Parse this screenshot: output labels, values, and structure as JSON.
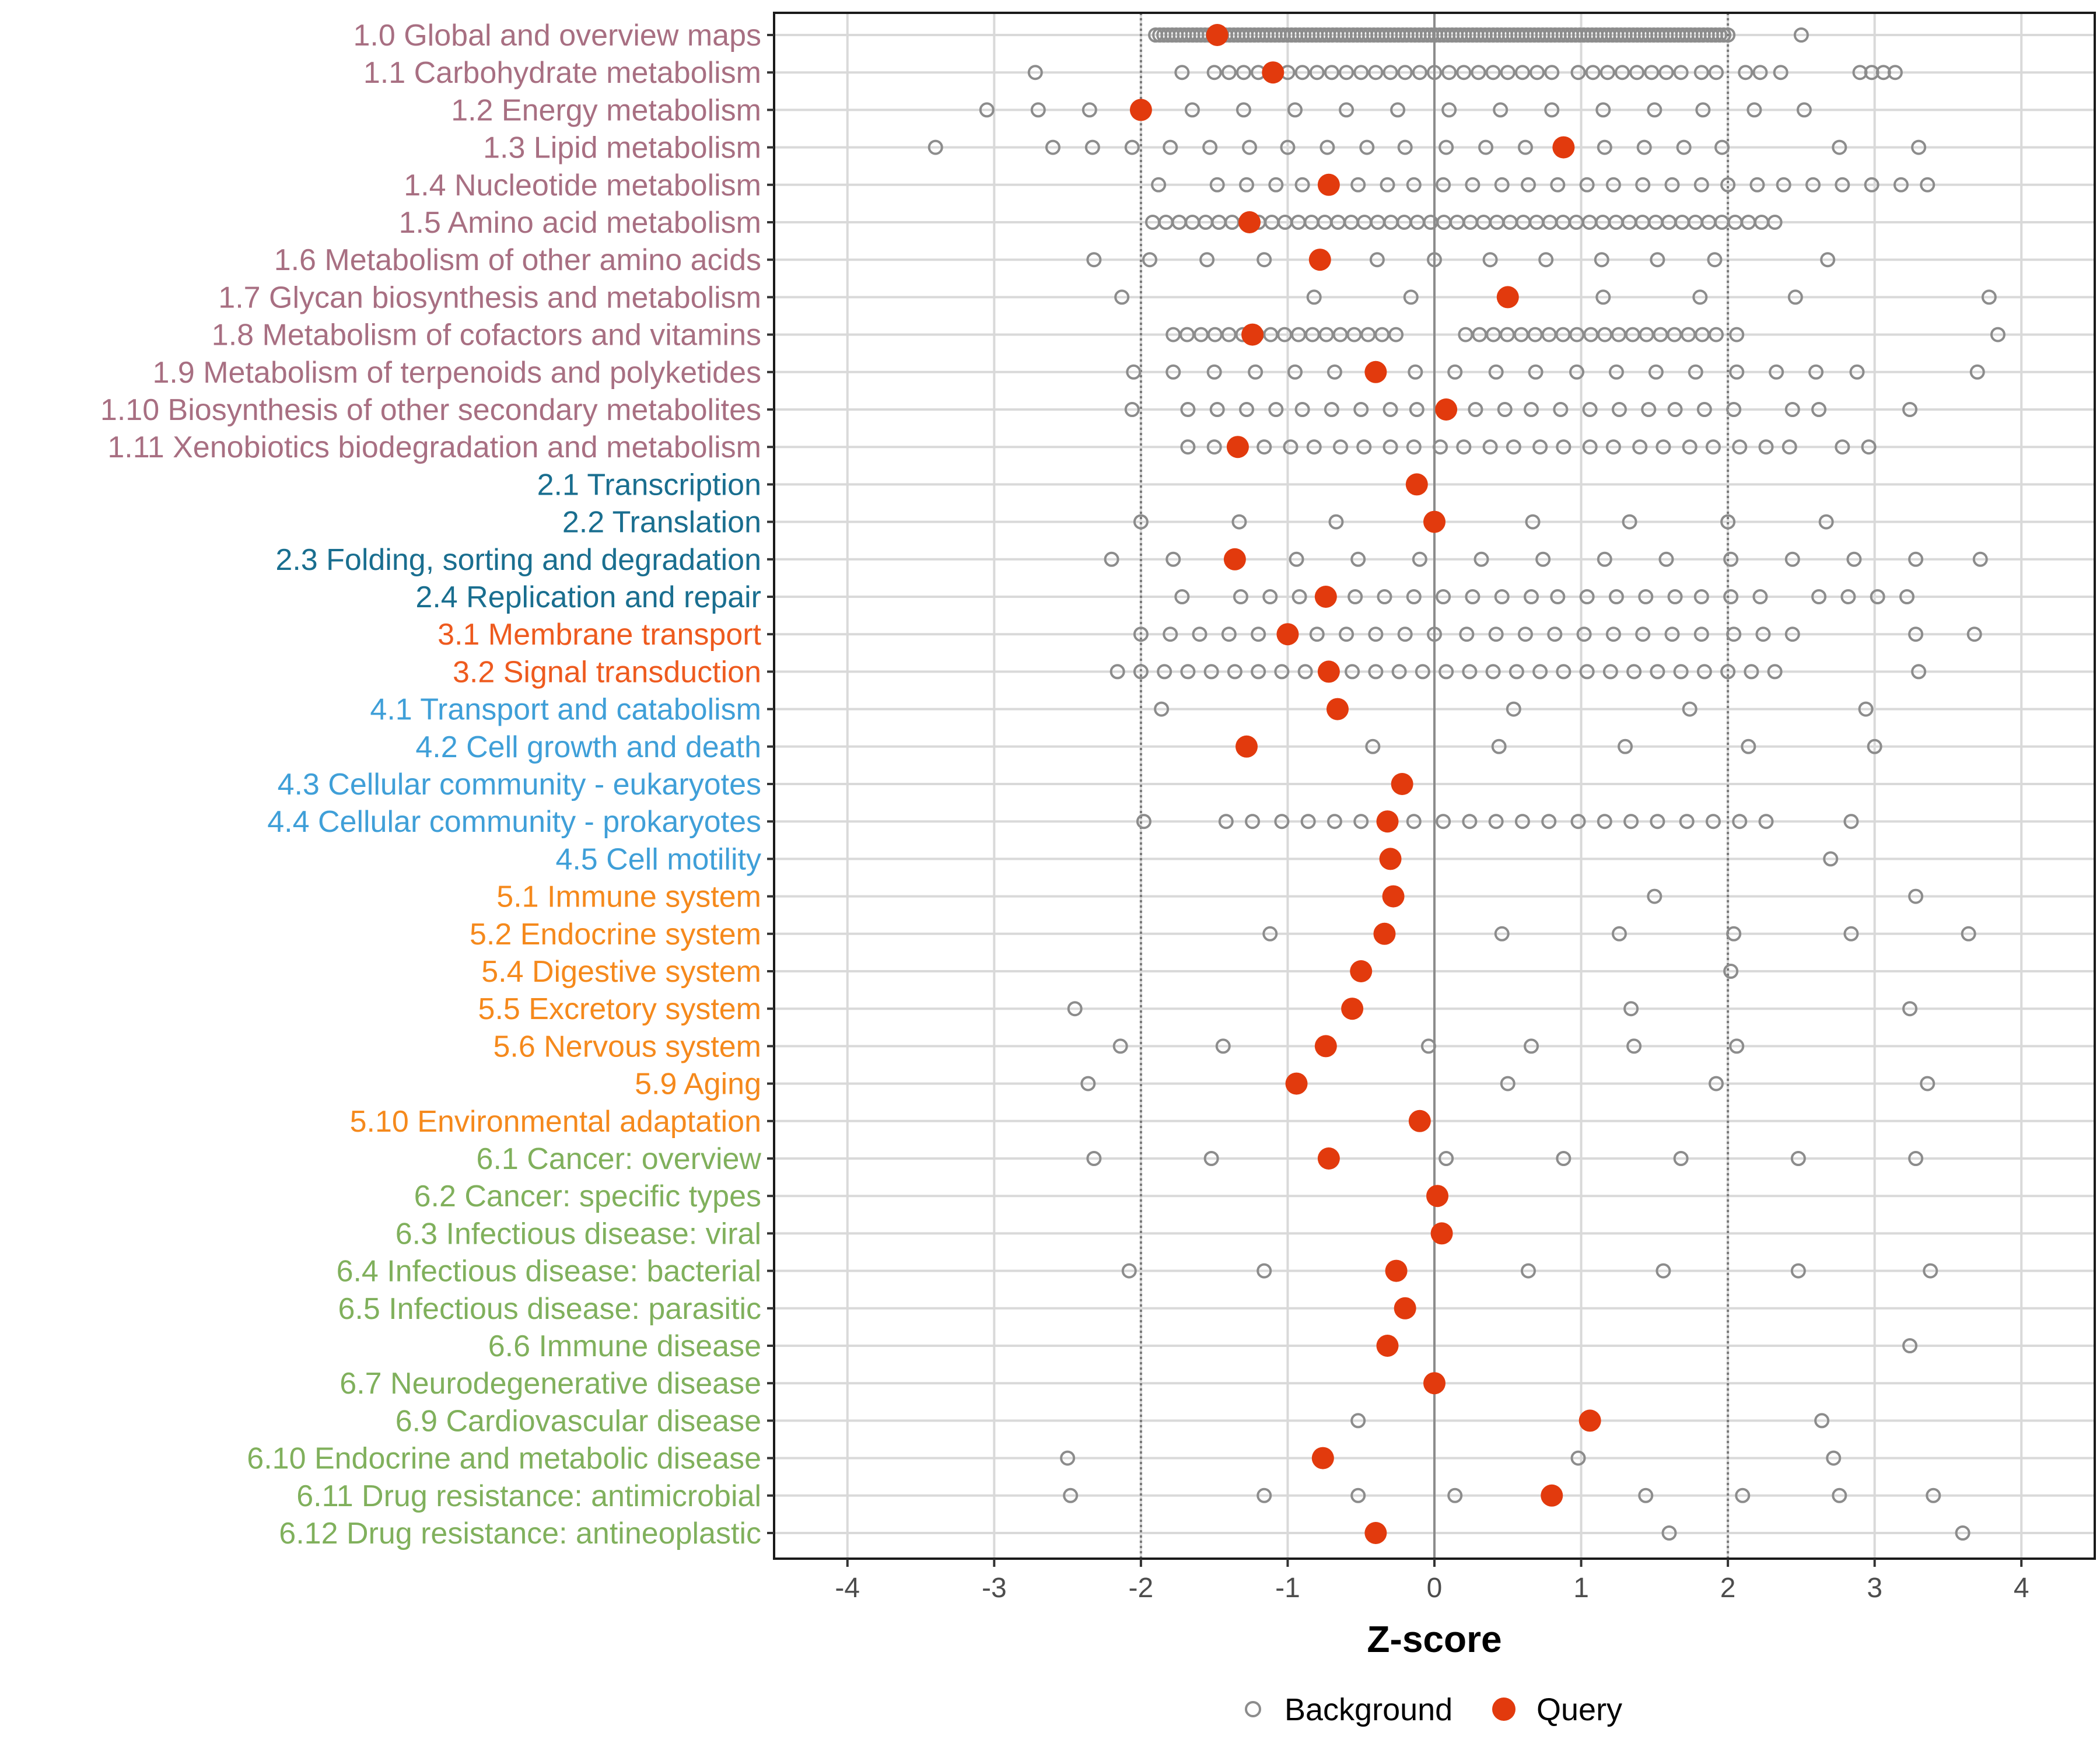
{
  "chart_data": {
    "type": "scatter",
    "xlabel": "Z-score",
    "ylabel": "",
    "xlim": [
      -4.5,
      4.5
    ],
    "xticks": [
      -4,
      -3,
      -2,
      -1,
      0,
      1,
      2,
      3,
      4
    ],
    "xtick_labels": [
      "-4",
      "-3",
      "-2",
      "-1",
      "0",
      "1",
      "2",
      "3",
      "4"
    ],
    "reference_lines": [
      -2,
      0,
      2
    ],
    "grid": true,
    "legend": {
      "position": "bottom",
      "entries": [
        {
          "name": "Background",
          "marker": "open-circle",
          "color": "#8c8c8c"
        },
        {
          "name": "Query",
          "marker": "filled-circle",
          "color": "#e23a0d"
        }
      ]
    },
    "group_colors": {
      "1": "#a86f82",
      "2": "#196e8f",
      "3": "#ee5a1e",
      "4": "#3f9fd8",
      "5": "#f5891c",
      "6": "#80b05c"
    },
    "categories": [
      {
        "label": "1.0 Global and overview maps",
        "group": "1",
        "query": -1.48,
        "background_range": [
          -1.9,
          2.0
        ],
        "background_count": 140,
        "background_extra": [
          2.5
        ]
      },
      {
        "label": "1.1 Carbohydrate metabolism",
        "group": "1",
        "query": -1.1,
        "background": [
          -2.72,
          -1.72,
          -1.5,
          -1.4,
          -1.3,
          -1.2,
          -1.0,
          -0.9,
          -0.8,
          -0.7,
          -0.6,
          -0.5,
          -0.4,
          -0.3,
          -0.2,
          -0.1,
          0.0,
          0.1,
          0.2,
          0.3,
          0.4,
          0.5,
          0.6,
          0.7,
          0.8,
          0.98,
          1.08,
          1.18,
          1.28,
          1.38,
          1.48,
          1.58,
          1.68,
          1.82,
          1.92,
          2.12,
          2.22,
          2.36,
          2.9,
          2.98,
          3.06,
          3.14
        ]
      },
      {
        "label": "1.2 Energy metabolism",
        "group": "1",
        "query": -2.0,
        "background": [
          -3.05,
          -2.7,
          -2.35,
          -2.0,
          -1.65,
          -1.3,
          -0.95,
          -0.6,
          -0.25,
          0.1,
          0.45,
          0.8,
          1.15,
          1.5,
          1.83,
          2.18,
          2.52
        ]
      },
      {
        "label": "1.3 Lipid metabolism",
        "group": "1",
        "query": 0.88,
        "background": [
          -3.4,
          -2.6,
          -2.33,
          -2.06,
          -1.8,
          -1.53,
          -1.26,
          -1.0,
          -0.73,
          -0.46,
          -0.2,
          0.08,
          0.35,
          0.62,
          0.9,
          1.16,
          1.43,
          1.7,
          1.96,
          2.76,
          3.3
        ]
      },
      {
        "label": "1.4 Nucleotide metabolism",
        "group": "1",
        "query": -0.72,
        "background": [
          -1.88,
          -1.48,
          -1.28,
          -1.08,
          -0.9,
          -0.7,
          -0.52,
          -0.32,
          -0.14,
          0.06,
          0.26,
          0.46,
          0.64,
          0.84,
          1.04,
          1.22,
          1.42,
          1.62,
          1.82,
          2.0,
          2.2,
          2.38,
          2.58,
          2.78,
          2.98,
          3.18,
          3.36
        ]
      },
      {
        "label": "1.5 Amino acid metabolism",
        "group": "1",
        "query": -1.26,
        "background_range": [
          -1.92,
          2.32
        ],
        "background_count": 48
      },
      {
        "label": "1.6 Metabolism of other amino acids",
        "group": "1",
        "query": -0.78,
        "background": [
          -2.32,
          -1.94,
          -1.55,
          -1.16,
          -0.78,
          -0.39,
          0.0,
          0.38,
          0.76,
          1.14,
          1.52,
          1.91,
          2.68
        ]
      },
      {
        "label": "1.7 Glycan biosynthesis and metabolism",
        "group": "1",
        "query": 0.5,
        "background": [
          -2.13,
          -0.82,
          -0.16,
          0.5,
          1.15,
          1.81,
          2.46,
          3.78
        ]
      },
      {
        "label": "1.8 Metabolism of cofactors and vitamins",
        "group": "1",
        "query": -1.24,
        "background_range": [
          -1.78,
          1.92
        ],
        "background_count": 40,
        "background_gap": [
          -0.22,
          0.2
        ],
        "background_extra": [
          2.06,
          3.84
        ]
      },
      {
        "label": "1.9 Metabolism of terpenoids and polyketides",
        "group": "1",
        "query": -0.4,
        "background": [
          -2.05,
          -1.78,
          -1.5,
          -1.22,
          -0.95,
          -0.68,
          -0.4,
          -0.13,
          0.14,
          0.42,
          0.69,
          0.97,
          1.24,
          1.51,
          1.78,
          2.06,
          2.33,
          2.6,
          2.88,
          3.7
        ]
      },
      {
        "label": "1.10 Biosynthesis of other secondary metabolites",
        "group": "1",
        "query": 0.08,
        "background": [
          -2.06,
          -1.68,
          -1.48,
          -1.28,
          -1.08,
          -0.9,
          -0.7,
          -0.5,
          -0.3,
          -0.12,
          0.08,
          0.28,
          0.48,
          0.66,
          0.86,
          1.06,
          1.26,
          1.46,
          1.64,
          1.84,
          2.04,
          2.44,
          2.62,
          3.24
        ]
      },
      {
        "label": "1.11 Xenobiotics biodegradation and metabolism",
        "group": "1",
        "query": -1.34,
        "background": [
          -1.68,
          -1.5,
          -1.34,
          -1.16,
          -0.98,
          -0.82,
          -0.64,
          -0.48,
          -0.3,
          -0.14,
          0.04,
          0.2,
          0.38,
          0.54,
          0.72,
          0.88,
          1.06,
          1.22,
          1.4,
          1.56,
          1.74,
          1.9,
          2.08,
          2.26,
          2.42,
          2.78,
          2.96
        ]
      },
      {
        "label": "2.1 Transcription",
        "group": "2",
        "query": -0.12,
        "background": []
      },
      {
        "label": "2.2 Translation",
        "group": "2",
        "query": 0.0,
        "background": [
          -2.0,
          -1.33,
          -0.67,
          0.0,
          0.67,
          1.33,
          2.0,
          2.67
        ]
      },
      {
        "label": "2.3 Folding, sorting and degradation",
        "group": "2",
        "query": -1.36,
        "background": [
          -2.2,
          -1.78,
          -1.36,
          -0.94,
          -0.52,
          -0.1,
          0.32,
          0.74,
          1.16,
          1.58,
          2.02,
          2.44,
          2.86,
          3.28,
          3.72
        ]
      },
      {
        "label": "2.4 Replication and repair",
        "group": "2",
        "query": -0.74,
        "background": [
          -1.72,
          -1.32,
          -1.12,
          -0.92,
          -0.74,
          -0.54,
          -0.34,
          -0.14,
          0.06,
          0.26,
          0.46,
          0.66,
          0.84,
          1.04,
          1.24,
          1.44,
          1.64,
          1.82,
          2.02,
          2.22,
          2.62,
          2.82,
          3.02,
          3.22
        ]
      },
      {
        "label": "3.1 Membrane transport",
        "group": "3",
        "query": -1.0,
        "background": [
          -2.0,
          -1.8,
          -1.6,
          -1.4,
          -1.2,
          -1.0,
          -0.8,
          -0.6,
          -0.4,
          -0.2,
          0.0,
          0.22,
          0.42,
          0.62,
          0.82,
          1.02,
          1.22,
          1.42,
          1.62,
          1.82,
          2.04,
          2.24,
          2.44,
          3.28,
          3.68
        ]
      },
      {
        "label": "3.2 Signal transduction",
        "group": "3",
        "query": -0.72,
        "background": [
          -2.16,
          -2.0,
          -1.84,
          -1.68,
          -1.52,
          -1.36,
          -1.2,
          -1.04,
          -0.88,
          -0.72,
          -0.56,
          -0.4,
          -0.24,
          -0.08,
          0.08,
          0.24,
          0.4,
          0.56,
          0.72,
          0.88,
          1.04,
          1.2,
          1.36,
          1.52,
          1.68,
          1.84,
          2.0,
          2.16,
          2.32,
          3.3
        ]
      },
      {
        "label": "4.1 Transport and catabolism",
        "group": "4",
        "query": -0.66,
        "background": [
          -1.86,
          -0.66,
          0.54,
          1.74,
          2.94
        ]
      },
      {
        "label": "4.2 Cell growth and death",
        "group": "4",
        "query": -1.28,
        "background": [
          -1.28,
          -0.42,
          0.44,
          1.3,
          2.14,
          3.0
        ]
      },
      {
        "label": "4.3 Cellular community - eukaryotes",
        "group": "4",
        "query": -0.22,
        "background": []
      },
      {
        "label": "4.4 Cellular community - prokaryotes",
        "group": "4",
        "query": -0.32,
        "background": [
          -1.98,
          -1.42,
          -1.24,
          -1.04,
          -0.86,
          -0.68,
          -0.5,
          -0.32,
          -0.14,
          0.06,
          0.24,
          0.42,
          0.6,
          0.78,
          0.98,
          1.16,
          1.34,
          1.52,
          1.72,
          1.9,
          2.08,
          2.26,
          2.84
        ]
      },
      {
        "label": "4.5 Cell motility",
        "group": "4",
        "query": -0.3,
        "background": [
          2.7
        ]
      },
      {
        "label": "5.1 Immune system",
        "group": "5",
        "query": -0.28,
        "background": [
          1.5,
          3.28
        ]
      },
      {
        "label": "5.2 Endocrine system",
        "group": "5",
        "query": -0.34,
        "background": [
          -1.12,
          0.46,
          1.26,
          2.04,
          2.84,
          3.64
        ]
      },
      {
        "label": "5.4 Digestive system",
        "group": "5",
        "query": -0.5,
        "background": [
          2.02
        ]
      },
      {
        "label": "5.5 Excretory system",
        "group": "5",
        "query": -0.56,
        "background": [
          -2.45,
          1.34,
          3.24
        ]
      },
      {
        "label": "5.6 Nervous system",
        "group": "5",
        "query": -0.74,
        "background": [
          -2.14,
          -1.44,
          -0.74,
          -0.04,
          0.66,
          1.36,
          2.06
        ]
      },
      {
        "label": "5.9 Aging",
        "group": "5",
        "query": -0.94,
        "background": [
          -2.36,
          0.5,
          1.92,
          3.36
        ]
      },
      {
        "label": "5.10 Environmental adaptation",
        "group": "5",
        "query": -0.1,
        "background": []
      },
      {
        "label": "6.1 Cancer: overview",
        "group": "6",
        "query": -0.72,
        "background": [
          -2.32,
          -1.52,
          -0.72,
          0.08,
          0.88,
          1.68,
          2.48,
          3.28
        ]
      },
      {
        "label": "6.2 Cancer: specific types",
        "group": "6",
        "query": 0.02,
        "background": []
      },
      {
        "label": "6.3 Infectious disease: viral",
        "group": "6",
        "query": 0.05,
        "background": []
      },
      {
        "label": "6.4 Infectious disease: bacterial",
        "group": "6",
        "query": -0.26,
        "background": [
          -2.08,
          -1.16,
          -0.26,
          0.64,
          1.56,
          2.48,
          3.38
        ]
      },
      {
        "label": "6.5 Infectious disease: parasitic",
        "group": "6",
        "query": -0.2,
        "background": []
      },
      {
        "label": "6.6 Immune disease",
        "group": "6",
        "query": -0.32,
        "background": [
          3.24
        ]
      },
      {
        "label": "6.7 Neurodegenerative disease",
        "group": "6",
        "query": 0.0,
        "background": []
      },
      {
        "label": "6.9 Cardiovascular disease",
        "group": "6",
        "query": 1.06,
        "background": [
          -0.52,
          1.06,
          2.64
        ]
      },
      {
        "label": "6.10 Endocrine and metabolic disease",
        "group": "6",
        "query": -0.76,
        "background": [
          -2.5,
          -0.76,
          0.98,
          2.72
        ]
      },
      {
        "label": "6.11 Drug resistance: antimicrobial",
        "group": "6",
        "query": 0.8,
        "background": [
          -2.48,
          -1.16,
          -0.52,
          0.14,
          0.8,
          1.44,
          2.1,
          2.76,
          3.4
        ]
      },
      {
        "label": "6.12 Drug resistance: antineoplastic",
        "group": "6",
        "query": -0.4,
        "background": [
          -0.4,
          1.6,
          3.6
        ]
      }
    ]
  }
}
